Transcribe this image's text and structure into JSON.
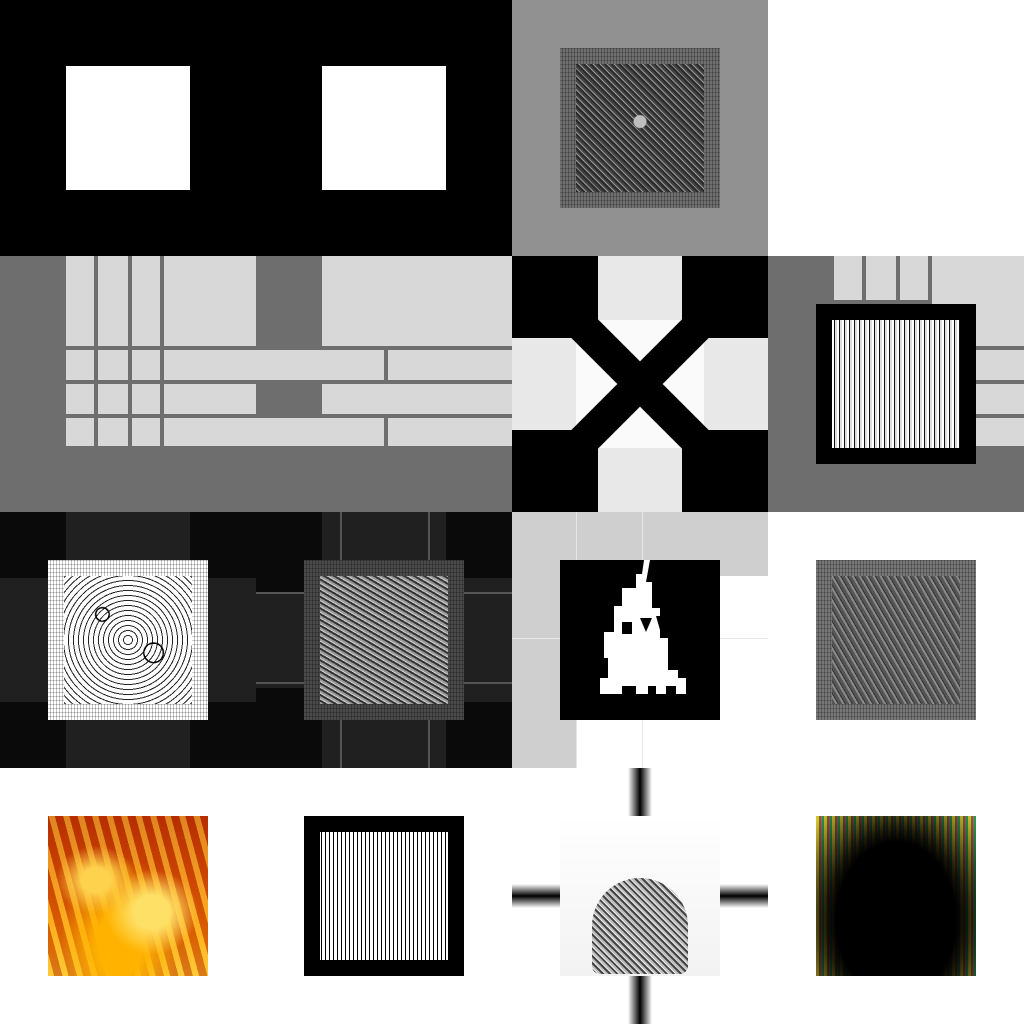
{
  "canvas": {
    "background": "#ffffff"
  },
  "tiles": [
    {
      "name": "tile-two-white-squares",
      "bg": "#000000"
    },
    {
      "name": "tile-noise-square-gray",
      "bg": "#919191"
    },
    {
      "name": "tile-blank",
      "bg": "#ffffff"
    },
    {
      "name": "tile-grid-pattern",
      "bg": "#6e6e6e",
      "fill": "#d8d8d8"
    },
    {
      "name": "tile-x-cross",
      "bg": "#000000",
      "fill": "#e8e8e8"
    },
    {
      "name": "tile-noise-on-grid",
      "bg": "#6e6e6e"
    },
    {
      "name": "tile-dark-grid-left",
      "bg": "#0a0a0a"
    },
    {
      "name": "tile-dark-grid-right",
      "bg": "#0a0a0a"
    },
    {
      "name": "tile-pixel-flame",
      "bg": "#ffffff"
    },
    {
      "name": "tile-noise-gray-right",
      "bg": "#ffffff"
    },
    {
      "name": "tile-fire",
      "bg": "#ffffff"
    },
    {
      "name": "tile-bw-noise",
      "bg": "#ffffff"
    },
    {
      "name": "tile-sphere-cross",
      "bg": "#ffffff"
    },
    {
      "name": "tile-dark-color-burst",
      "bg": "#ffffff"
    }
  ]
}
